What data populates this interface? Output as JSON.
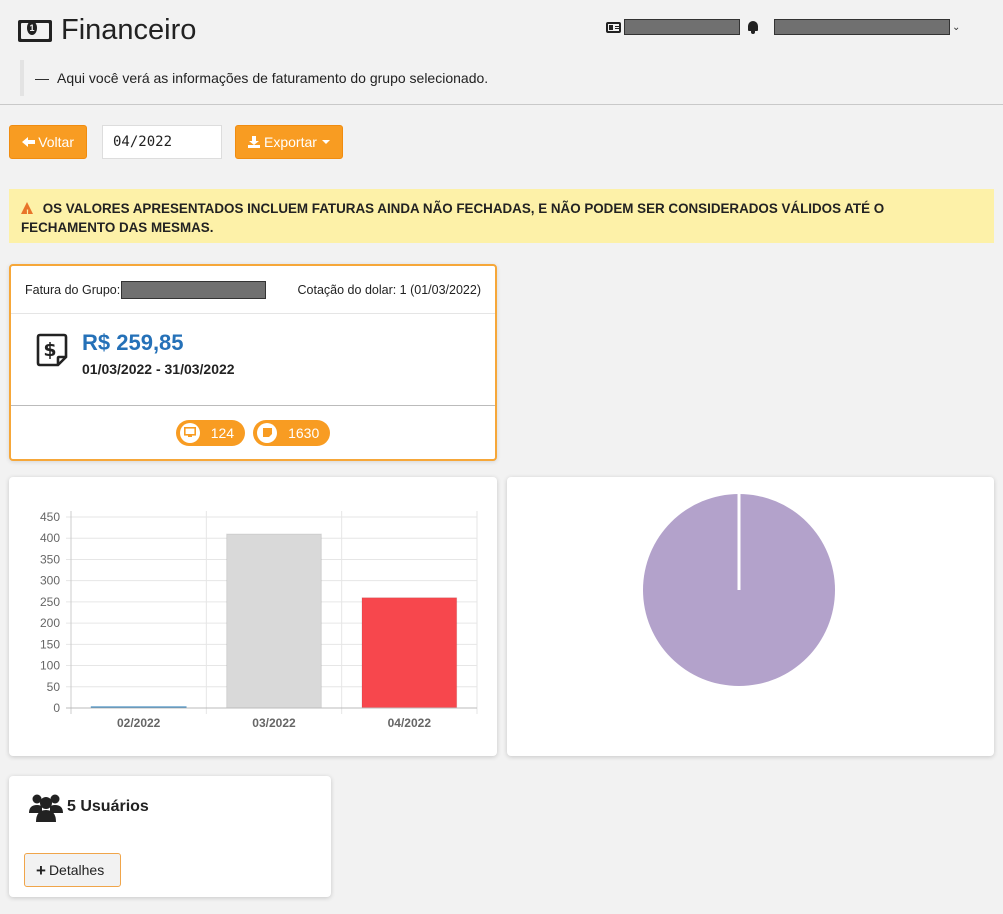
{
  "header": {
    "title": "Financeiro",
    "subtitle_dash": "—",
    "subtitle": "Aqui você verá as informações de faturamento do grupo selecionado."
  },
  "toolbar": {
    "back_label": "Voltar",
    "month_value": "04/2022",
    "export_label": "Exportar"
  },
  "alert": {
    "text": "OS VALORES APRESENTADOS INCLUEM FATURAS AINDA NÃO FECHADAS, E NÃO PODEM SER CONSIDERADOS VÁLIDOS ATÉ O FECHAMENTO DAS MESMAS."
  },
  "invoice": {
    "group_label": "Fatura do Grupo:",
    "dollar_rate": "Cotação do dolar: 1 (01/03/2022)",
    "amount": "R$ 259,85",
    "period": "01/03/2022 - 31/03/2022",
    "badges": [
      {
        "icon": "monitor-icon",
        "value": "124"
      },
      {
        "icon": "note-icon",
        "value": "1630"
      }
    ]
  },
  "chart_data": [
    {
      "type": "bar",
      "categories": [
        "02/2022",
        "03/2022",
        "04/2022"
      ],
      "values": [
        0,
        410,
        259.85
      ],
      "colors": [
        "#1f77b4",
        "#d9d9d9",
        "#f7474d"
      ],
      "ylim": [
        0,
        450
      ],
      "yticks": [
        0,
        50,
        100,
        150,
        200,
        250,
        300,
        350,
        400,
        450
      ],
      "grid": true,
      "title": "",
      "xlabel": "",
      "ylabel": ""
    },
    {
      "type": "pie",
      "values": [
        100
      ],
      "colors": [
        "#b3a2cb"
      ]
    }
  ],
  "users": {
    "title": "5 Usuários",
    "details_label": "Detalhes"
  },
  "colors": {
    "accent": "#f89c22",
    "amount": "#2571b8",
    "alert_bg": "#fdf1a8"
  }
}
